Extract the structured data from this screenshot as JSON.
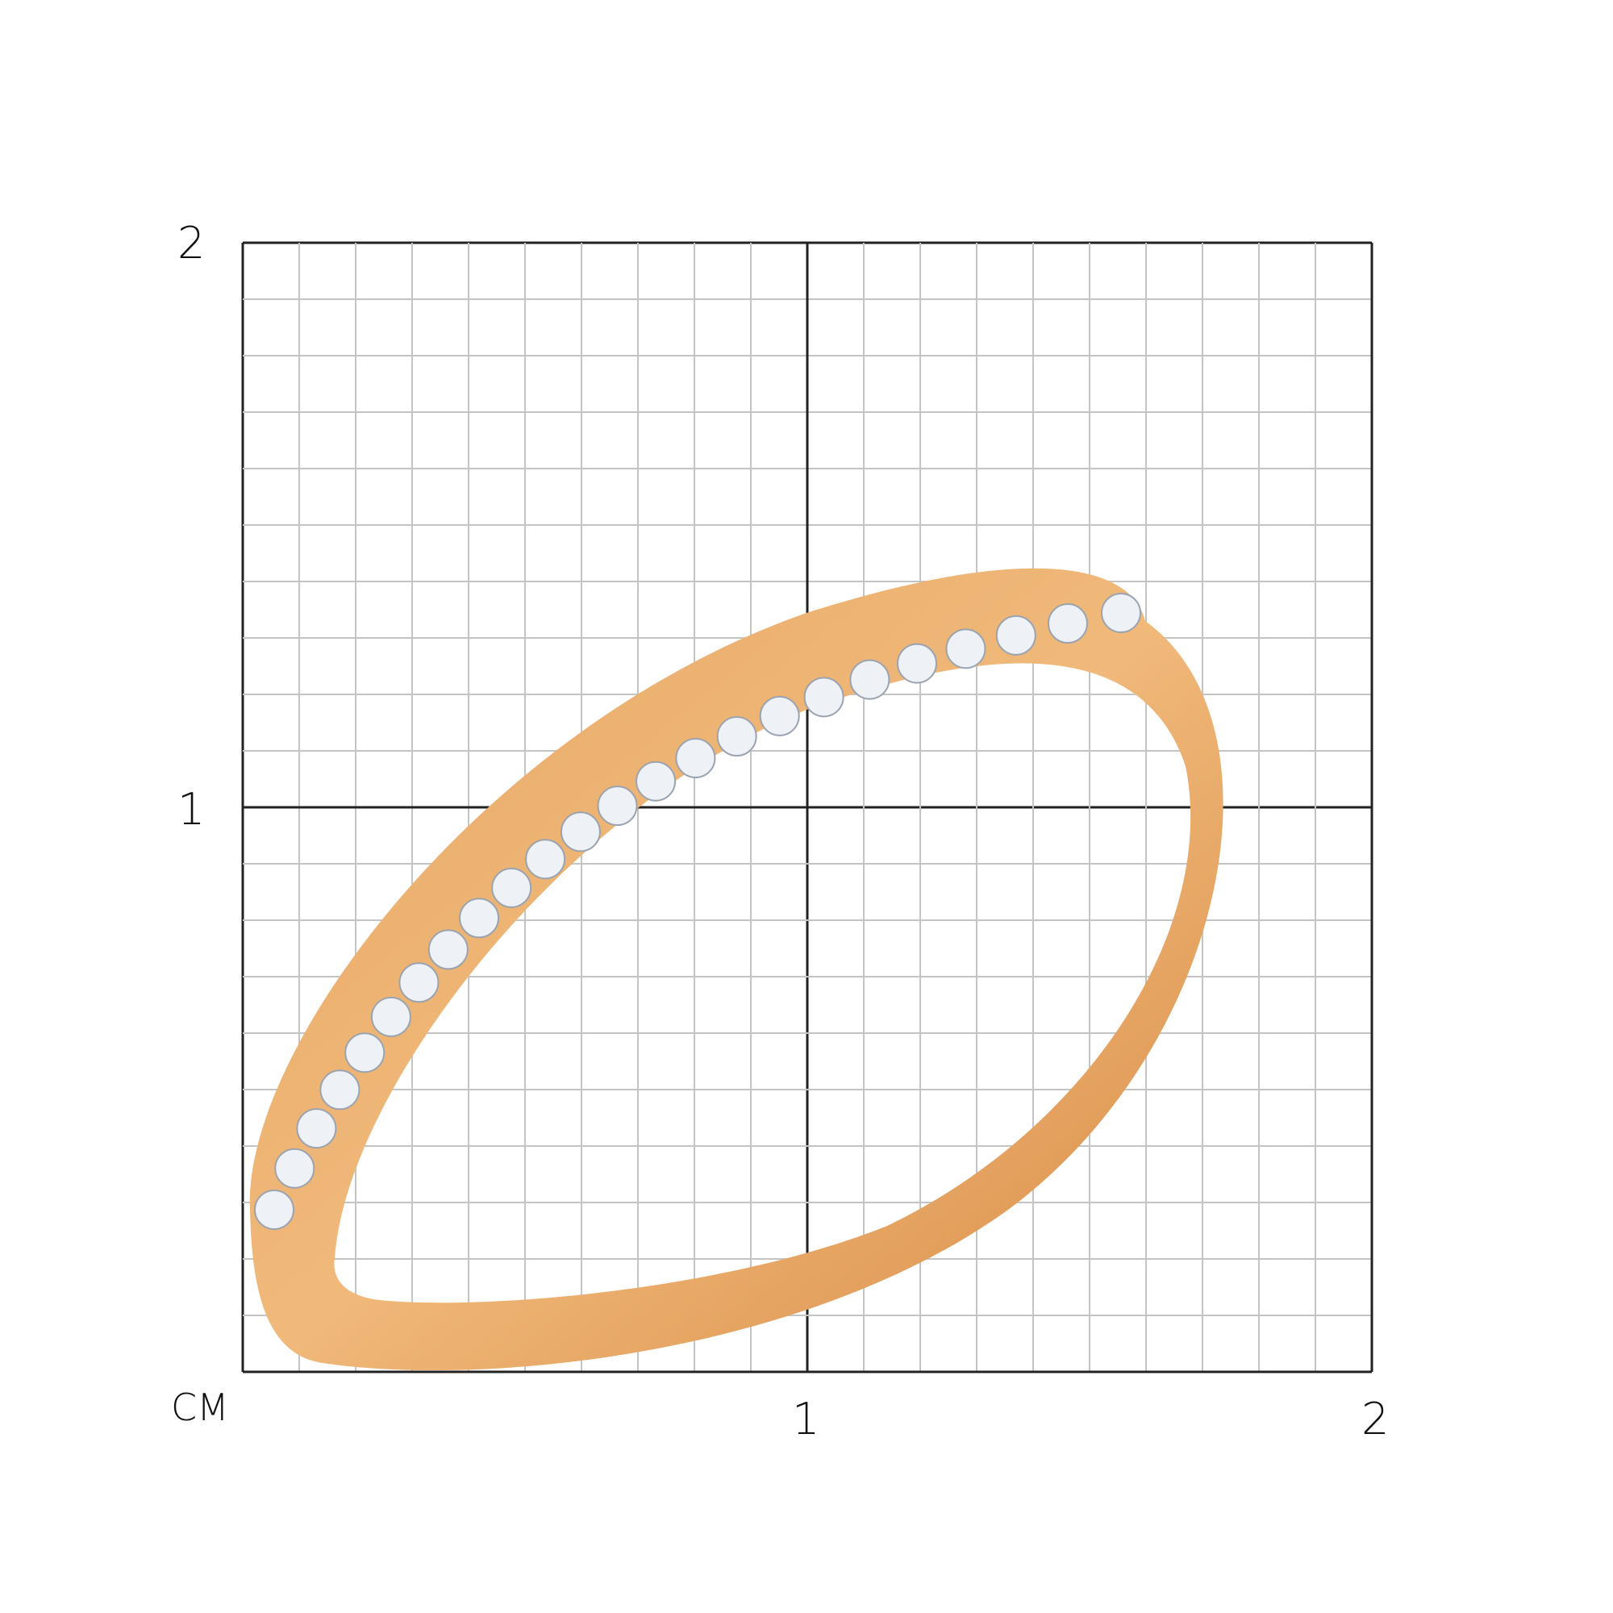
{
  "axis": {
    "unit_label": "СМ",
    "x_ticks": [
      "1",
      "2"
    ],
    "y_ticks": [
      "1",
      "2"
    ],
    "range_cm": [
      0,
      2
    ],
    "minor_divisions_per_cm": 10
  },
  "colors": {
    "grid_minor": "#c4c4c4",
    "grid_major": "#222222",
    "gold": "#e3a35f",
    "gold_dark": "#d4843f",
    "stone": "#eef1f6"
  },
  "stone_count": 24
}
